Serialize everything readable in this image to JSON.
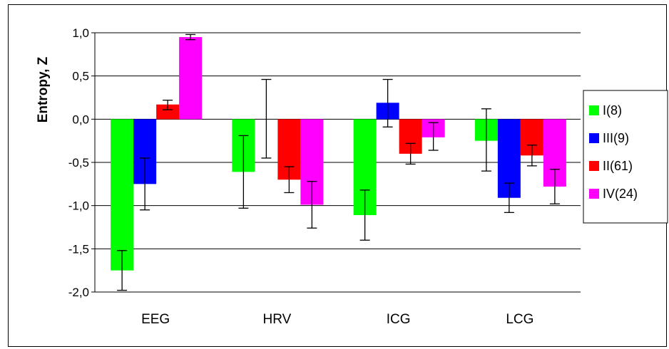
{
  "chart_data": {
    "type": "bar",
    "title": "",
    "xlabel": "",
    "ylabel": "Entropy, Z",
    "ylim": [
      -2.0,
      1.0
    ],
    "yticks": [
      1.0,
      0.5,
      0.0,
      -0.5,
      -1.0,
      -1.5,
      -2.0
    ],
    "ytick_labels": [
      "1,0",
      "0,5",
      "0,0",
      "-0,5",
      "-1,0",
      "-1,5",
      "-2,0"
    ],
    "grid": true,
    "legend_position": "right",
    "categories": [
      "EEG",
      "HRV",
      "ICG",
      "LCG"
    ],
    "series": [
      {
        "name": "I(8)",
        "color": "#00ff00",
        "values": [
          -1.75,
          -0.61,
          -1.11,
          -0.25
        ],
        "err_low": [
          0.23,
          0.42,
          0.29,
          0.35
        ],
        "err_high": [
          0.23,
          0.42,
          0.29,
          0.37
        ]
      },
      {
        "name": "III(9)",
        "color": "#0000ff",
        "values": [
          -0.75,
          0.0,
          0.19,
          -0.91
        ],
        "err_low": [
          0.3,
          0.45,
          0.28,
          0.17
        ],
        "err_high": [
          0.3,
          0.46,
          0.27,
          0.17
        ]
      },
      {
        "name": "II(61)",
        "color": "#ff0000",
        "values": [
          0.17,
          -0.7,
          -0.4,
          -0.42
        ],
        "err_low": [
          0.06,
          0.15,
          0.12,
          0.12
        ],
        "err_high": [
          0.05,
          0.15,
          0.12,
          0.12
        ]
      },
      {
        "name": "IV(24)",
        "color": "#ff00ff",
        "values": [
          0.95,
          -0.99,
          -0.21,
          -0.78
        ],
        "err_low": [
          0.03,
          0.27,
          0.15,
          0.2
        ],
        "err_high": [
          0.03,
          0.27,
          0.17,
          0.2
        ]
      }
    ]
  }
}
